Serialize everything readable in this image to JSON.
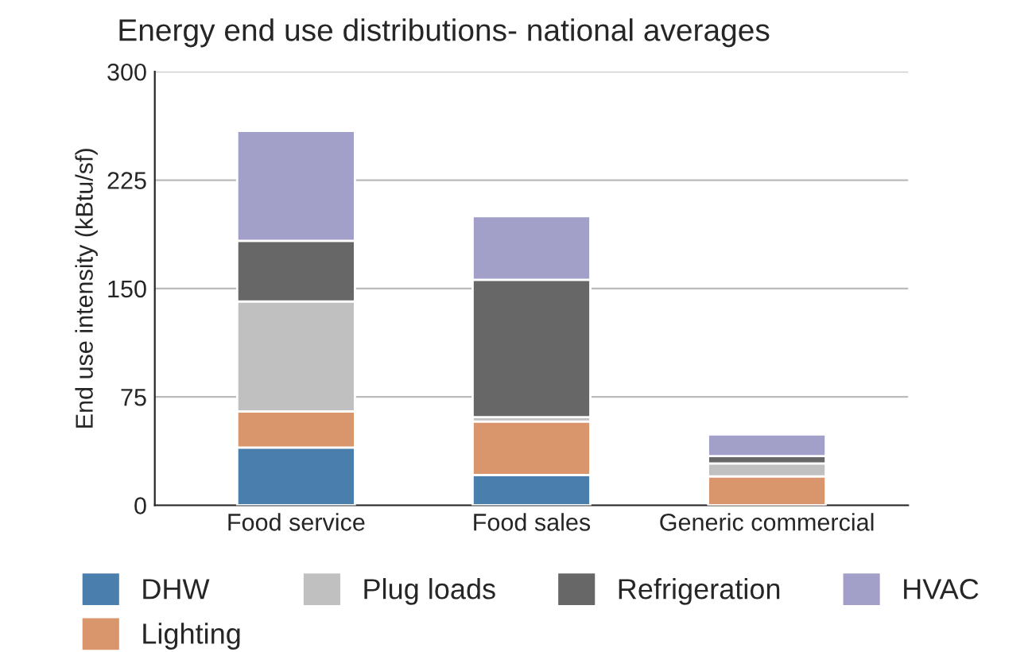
{
  "chart_data": {
    "type": "bar",
    "title": "Energy end use distributions- national averages",
    "ylabel": "End use intensity (kBtu/sf)",
    "categories": [
      "Food service",
      "Food sales",
      "Generic commercial"
    ],
    "stacked": true,
    "series": [
      {
        "name": "DHW",
        "color": "#4a7fad",
        "values": [
          40,
          21,
          null
        ]
      },
      {
        "name": "Lighting",
        "color": "#d9956b",
        "values": [
          25,
          37,
          20
        ]
      },
      {
        "name": "Plug loads",
        "color": "#c0c0c0",
        "values": [
          76,
          3,
          9
        ]
      },
      {
        "name": "Refrigeration",
        "color": "#676767",
        "values": [
          42,
          95,
          5
        ]
      },
      {
        "name": "HVAC",
        "color": "#a29fc8",
        "values": [
          76,
          44,
          15
        ]
      }
    ],
    "ylim": [
      0,
      300
    ],
    "yticks": [
      0,
      75,
      150,
      225,
      300
    ],
    "grid": "y",
    "legend": "bottom"
  }
}
